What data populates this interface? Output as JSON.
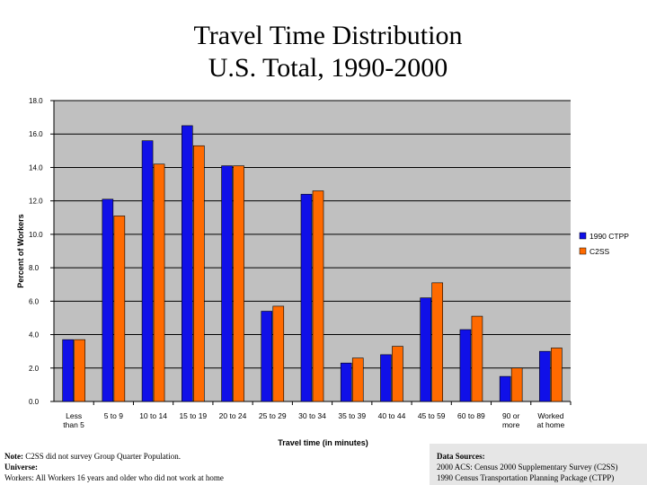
{
  "header": {
    "title_line1": "Travel Time Distribution",
    "title_line2": "U.S. Total, 1990-2000"
  },
  "chart_data": {
    "type": "bar",
    "title": "Travel Time Distribution U.S. Total, 1990-2000",
    "xlabel": "Travel time (in minutes)",
    "ylabel": "Percent of Workers",
    "ylim": [
      0,
      18
    ],
    "yticks": [
      "0.0",
      "2.0",
      "4.0",
      "6.0",
      "8.0",
      "10.0",
      "12.0",
      "14.0",
      "16.0",
      "18.0"
    ],
    "grid": true,
    "legend_position": "right",
    "categories": [
      [
        "Less",
        "than 5"
      ],
      [
        "5 to 9"
      ],
      [
        "10 to 14"
      ],
      [
        "15 to 19"
      ],
      [
        "20 to 24"
      ],
      [
        "25 to 29"
      ],
      [
        "30 to 34"
      ],
      [
        "35 to 39"
      ],
      [
        "40 to 44"
      ],
      [
        "45 to 59"
      ],
      [
        "60 to 89"
      ],
      [
        "90 or",
        "more"
      ],
      [
        "Worked",
        "at home"
      ]
    ],
    "series": [
      {
        "name": "1990 CTPP",
        "color": "#1010e8",
        "values": [
          3.7,
          12.1,
          15.6,
          16.5,
          14.1,
          5.4,
          12.4,
          2.3,
          2.8,
          6.2,
          4.3,
          1.5,
          3.0
        ]
      },
      {
        "name": "C2SS",
        "color": "#ff6a00",
        "values": [
          3.7,
          11.1,
          14.2,
          15.3,
          14.1,
          5.7,
          12.6,
          2.6,
          3.3,
          7.1,
          5.1,
          2.0,
          3.2
        ]
      }
    ]
  },
  "notes": {
    "note_label": "Note:",
    "note_text": " C2SS did not survey Group Quarter Population.",
    "universe_label": "Universe:",
    "universe_text": "Workers: All Workers 16 years and older who did not work at home"
  },
  "sources": {
    "label": "Data Sources:",
    "line1": "2000 ACS: Census 2000 Supplementary Survey (C2SS)",
    "line2": "1990 Census Transportation Planning Package (CTPP)"
  },
  "colors": {
    "plot_background": "#c0c0c0",
    "blue": "#1010e8",
    "orange": "#ff6a00"
  }
}
